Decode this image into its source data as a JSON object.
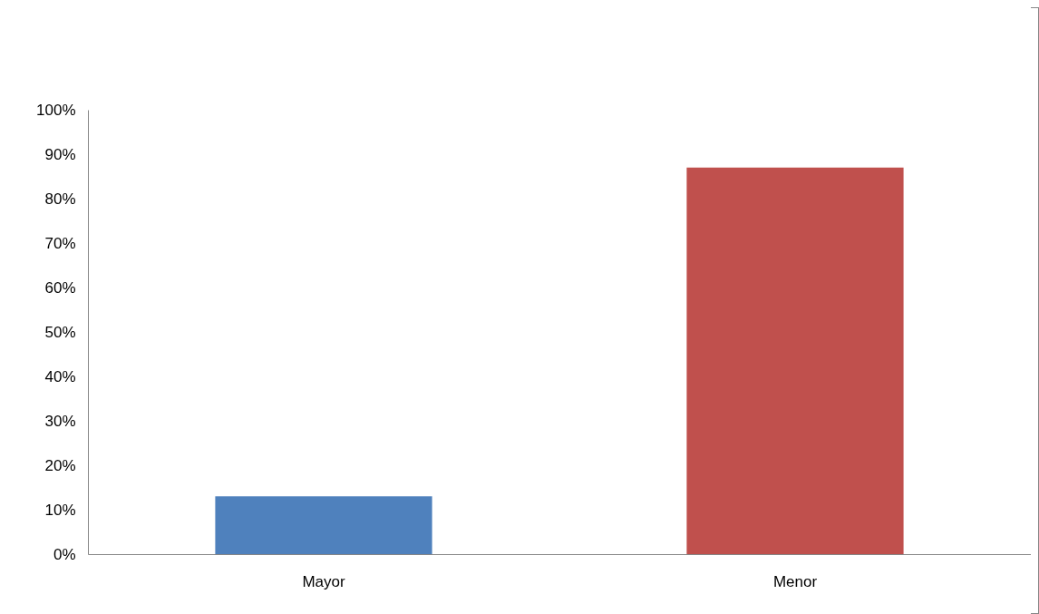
{
  "chart_data": {
    "type": "bar",
    "categories": [
      "Mayor",
      "Menor"
    ],
    "values": [
      13,
      87
    ],
    "colors": [
      "#4f81bd",
      "#c0504d"
    ],
    "ylim": [
      0,
      100
    ],
    "yticks": [
      {
        "value": 0,
        "label": "0%"
      },
      {
        "value": 10,
        "label": "10%"
      },
      {
        "value": 20,
        "label": "20%"
      },
      {
        "value": 30,
        "label": "30%"
      },
      {
        "value": 40,
        "label": "40%"
      },
      {
        "value": 50,
        "label": "50%"
      },
      {
        "value": 60,
        "label": "60%"
      },
      {
        "value": 70,
        "label": "70%"
      },
      {
        "value": 80,
        "label": "80%"
      },
      {
        "value": 90,
        "label": "90%"
      },
      {
        "value": 100,
        "label": "100%"
      }
    ],
    "grid": false
  }
}
